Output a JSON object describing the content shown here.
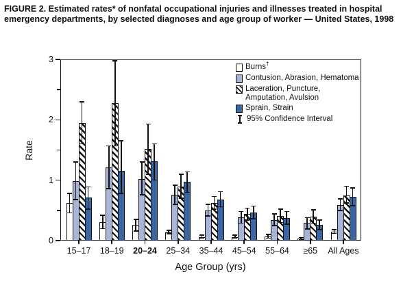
{
  "title": "FIGURE 2. Estimated rates* of nonfatal occupational injuries and illnesses treated in hospital emergency departments, by selected diagnoses and age group of worker — United States, 1998",
  "colors": {
    "ink": "#111111",
    "burns_fill": "#ffffff",
    "contusion_fill": "#a8b5d9",
    "sprain_fill": "#3b66a6",
    "laceration_pattern": "black diagonal hatch on white"
  },
  "legend": {
    "items": [
      {
        "key": "burns",
        "label": "Burns",
        "sup": "†"
      },
      {
        "key": "contusion",
        "label": "Contusion, Abrasion, Hematoma",
        "sup": ""
      },
      {
        "key": "laceration",
        "label": "Laceration, Puncture, Amputation, Avulsion",
        "sup": ""
      },
      {
        "key": "sprain",
        "label": "Sprain, Strain",
        "sup": ""
      },
      {
        "key": "ci",
        "label": "95% Confidence Interval",
        "sup": ""
      }
    ]
  },
  "chart_data": {
    "type": "bar",
    "title": "",
    "xlabel": "Age Group (yrs)",
    "ylabel": "Rate",
    "ylim": [
      0,
      3
    ],
    "yticks_major": [
      0,
      1,
      2,
      3
    ],
    "yticks_minor": [
      0.5,
      1.5,
      2.5
    ],
    "grid": false,
    "legend_position": "top-right-inside",
    "error_bars": "95% confidence interval",
    "categories": [
      "15–17",
      "18–19",
      "20–24",
      "25–34",
      "35–44",
      "45–54",
      "55–64",
      "≥65",
      "All Ages"
    ],
    "bold_category": "20–24",
    "series": [
      {
        "name": "Burns",
        "values": [
          0.62,
          0.31,
          0.26,
          0.14,
          0.06,
          0.06,
          0.07,
          0.03,
          0.15
        ],
        "ci_low": [
          0.46,
          0.2,
          0.16,
          0.11,
          0.04,
          0.04,
          0.04,
          0.01,
          0.12
        ],
        "ci_high": [
          0.78,
          0.42,
          0.35,
          0.17,
          0.09,
          0.09,
          0.1,
          0.05,
          0.18
        ]
      },
      {
        "name": "Contusion, Abrasion, Hematoma",
        "values": [
          0.98,
          1.21,
          1.02,
          0.76,
          0.5,
          0.38,
          0.34,
          0.29,
          0.59
        ],
        "ci_low": [
          0.68,
          0.86,
          0.76,
          0.6,
          0.41,
          0.29,
          0.25,
          0.19,
          0.5
        ],
        "ci_high": [
          1.3,
          1.57,
          1.3,
          0.92,
          0.6,
          0.48,
          0.44,
          0.38,
          0.69
        ]
      },
      {
        "name": "Laceration, Puncture, Amputation, Avulsion",
        "values": [
          1.95,
          2.27,
          1.52,
          0.9,
          0.62,
          0.44,
          0.41,
          0.4,
          0.75
        ],
        "ci_low": [
          1.6,
          1.57,
          1.1,
          0.7,
          0.52,
          0.34,
          0.3,
          0.29,
          0.62
        ],
        "ci_high": [
          2.3,
          2.98,
          1.93,
          1.1,
          0.73,
          0.54,
          0.52,
          0.51,
          0.9
        ]
      },
      {
        "name": "Sprain, Strain",
        "values": [
          0.71,
          1.16,
          1.31,
          0.97,
          0.68,
          0.46,
          0.37,
          0.26,
          0.72
        ],
        "ci_low": [
          0.52,
          0.78,
          1.0,
          0.8,
          0.56,
          0.36,
          0.27,
          0.18,
          0.58
        ],
        "ci_high": [
          0.89,
          1.65,
          1.6,
          1.14,
          0.81,
          0.57,
          0.48,
          0.34,
          0.87
        ]
      }
    ]
  }
}
